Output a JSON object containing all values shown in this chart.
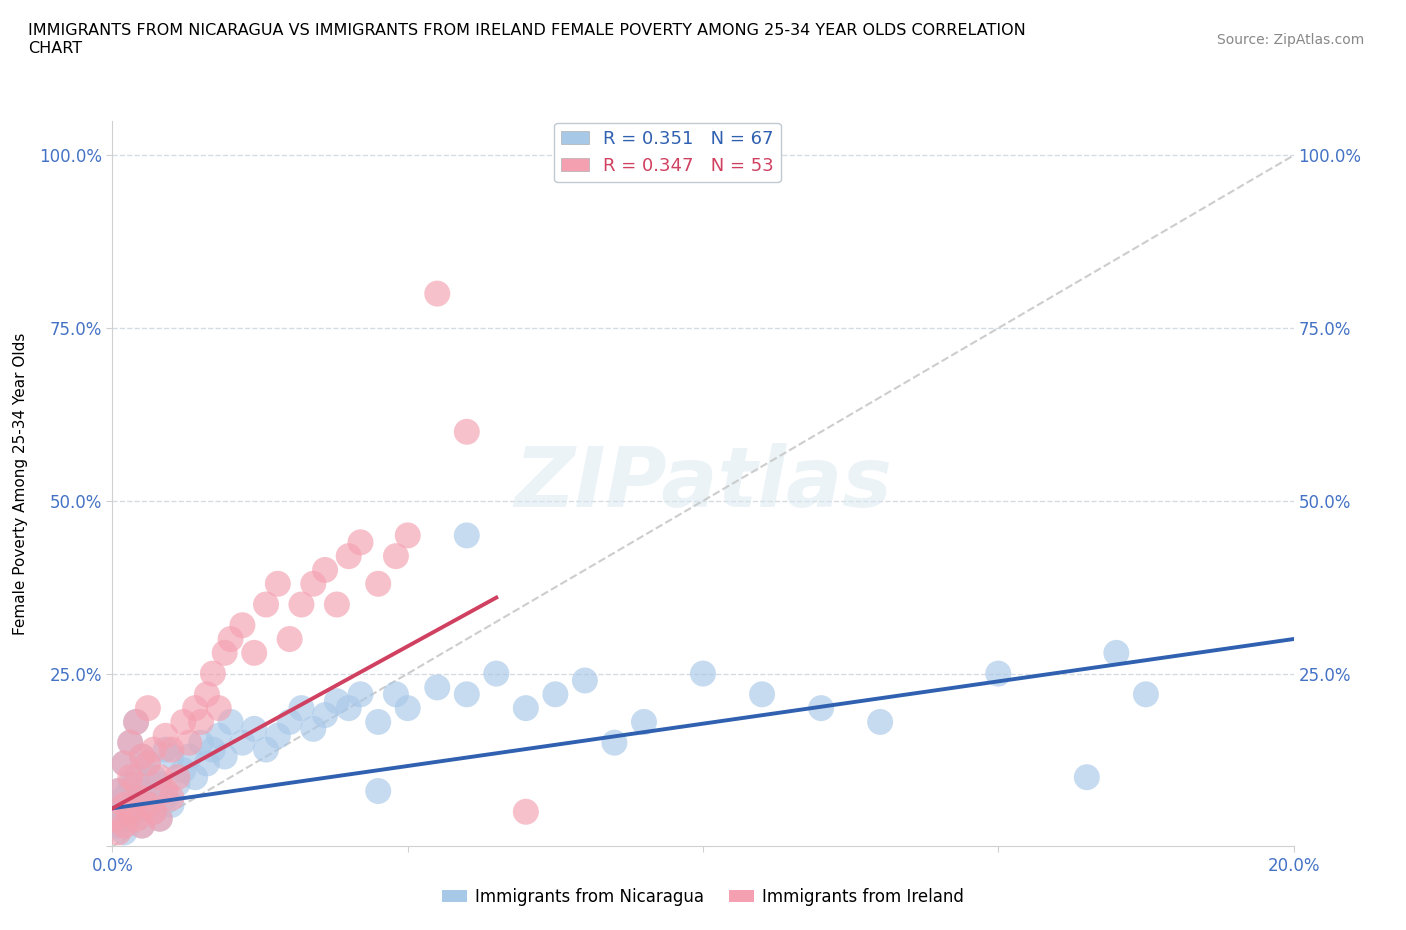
{
  "title": "IMMIGRANTS FROM NICARAGUA VS IMMIGRANTS FROM IRELAND FEMALE POVERTY AMONG 25-34 YEAR OLDS CORRELATION\nCHART",
  "source": "Source: ZipAtlas.com",
  "ylabel": "Female Poverty Among 25-34 Year Olds",
  "xlim": [
    0.0,
    0.2
  ],
  "ylim": [
    0.0,
    1.05
  ],
  "watermark": "ZIPatlas",
  "nicaragua_color": "#a8c8e8",
  "ireland_color": "#f4a0b0",
  "nicaragua_line_color": "#3060b0",
  "ireland_line_color": "#d04060",
  "diagonal_color": "#c8c8c8",
  "nicaragua_R": 0.351,
  "nicaragua_N": 67,
  "ireland_R": 0.347,
  "ireland_N": 53,
  "legend_label_nicaragua": "Immigrants from Nicaragua",
  "legend_label_ireland": "Immigrants from Ireland",
  "nicaragua_x": [
    0.0005,
    0.001,
    0.001,
    0.002,
    0.002,
    0.002,
    0.003,
    0.003,
    0.003,
    0.004,
    0.004,
    0.004,
    0.005,
    0.005,
    0.005,
    0.006,
    0.006,
    0.007,
    0.007,
    0.008,
    0.008,
    0.009,
    0.009,
    0.01,
    0.01,
    0.011,
    0.012,
    0.013,
    0.014,
    0.015,
    0.016,
    0.017,
    0.018,
    0.019,
    0.02,
    0.022,
    0.024,
    0.026,
    0.028,
    0.03,
    0.032,
    0.034,
    0.036,
    0.038,
    0.04,
    0.042,
    0.045,
    0.048,
    0.05,
    0.055,
    0.06,
    0.065,
    0.07,
    0.075,
    0.08,
    0.085,
    0.09,
    0.1,
    0.11,
    0.12,
    0.13,
    0.15,
    0.165,
    0.17,
    0.175,
    0.06,
    0.045
  ],
  "nicaragua_y": [
    0.05,
    0.03,
    0.08,
    0.02,
    0.07,
    0.12,
    0.04,
    0.09,
    0.15,
    0.05,
    0.1,
    0.18,
    0.03,
    0.08,
    0.13,
    0.06,
    0.12,
    0.05,
    0.1,
    0.04,
    0.09,
    0.07,
    0.14,
    0.06,
    0.13,
    0.09,
    0.11,
    0.13,
    0.1,
    0.15,
    0.12,
    0.14,
    0.16,
    0.13,
    0.18,
    0.15,
    0.17,
    0.14,
    0.16,
    0.18,
    0.2,
    0.17,
    0.19,
    0.21,
    0.2,
    0.22,
    0.18,
    0.22,
    0.2,
    0.23,
    0.22,
    0.25,
    0.2,
    0.22,
    0.24,
    0.15,
    0.18,
    0.25,
    0.22,
    0.2,
    0.18,
    0.25,
    0.1,
    0.28,
    0.22,
    0.45,
    0.08
  ],
  "ireland_x": [
    0.0005,
    0.001,
    0.001,
    0.002,
    0.002,
    0.002,
    0.003,
    0.003,
    0.003,
    0.004,
    0.004,
    0.004,
    0.005,
    0.005,
    0.005,
    0.006,
    0.006,
    0.006,
    0.007,
    0.007,
    0.008,
    0.008,
    0.009,
    0.009,
    0.01,
    0.01,
    0.011,
    0.012,
    0.013,
    0.014,
    0.015,
    0.016,
    0.017,
    0.018,
    0.019,
    0.02,
    0.022,
    0.024,
    0.026,
    0.028,
    0.03,
    0.032,
    0.034,
    0.036,
    0.038,
    0.04,
    0.042,
    0.045,
    0.048,
    0.05,
    0.055,
    0.06,
    0.07
  ],
  "ireland_y": [
    0.04,
    0.02,
    0.08,
    0.03,
    0.06,
    0.12,
    0.05,
    0.1,
    0.15,
    0.04,
    0.09,
    0.18,
    0.03,
    0.07,
    0.13,
    0.06,
    0.12,
    0.2,
    0.05,
    0.14,
    0.04,
    0.1,
    0.08,
    0.16,
    0.07,
    0.14,
    0.1,
    0.18,
    0.15,
    0.2,
    0.18,
    0.22,
    0.25,
    0.2,
    0.28,
    0.3,
    0.32,
    0.28,
    0.35,
    0.38,
    0.3,
    0.35,
    0.38,
    0.4,
    0.35,
    0.42,
    0.44,
    0.38,
    0.42,
    0.45,
    0.8,
    0.6,
    0.05
  ],
  "nic_line_x": [
    0.0,
    0.2
  ],
  "nic_line_y": [
    0.055,
    0.3
  ],
  "ire_line_x": [
    0.0,
    0.065
  ],
  "ire_line_y": [
    0.055,
    0.36
  ]
}
